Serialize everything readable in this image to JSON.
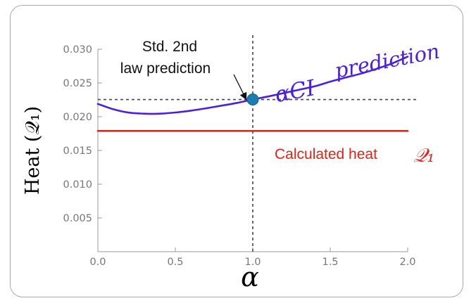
{
  "chart_data": {
    "type": "line",
    "xlabel": "α",
    "ylabel": "Heat (𝒬₁)",
    "xlim": [
      0,
      2
    ],
    "ylim": [
      0,
      0.03
    ],
    "xticks": [
      "0.0",
      "0.5",
      "1.0",
      "1.5",
      "2.0"
    ],
    "yticks": [
      "0.005",
      "0.010",
      "0.015",
      "0.020",
      "0.025",
      "0.030"
    ],
    "grid": false,
    "series": [
      {
        "name": "αCI prediction",
        "color": "#4b1fe0",
        "x": [
          0,
          0.1,
          0.2,
          0.3,
          0.35,
          0.4,
          0.5,
          0.6,
          0.7,
          0.8,
          0.9,
          1.0,
          1.1,
          1.2,
          1.3,
          1.4,
          1.5,
          1.6,
          1.7,
          1.8,
          1.9,
          2.0
        ],
        "y": [
          0.0219,
          0.0211,
          0.0206,
          0.02045,
          0.02043,
          0.02045,
          0.02062,
          0.0209,
          0.02125,
          0.02165,
          0.02205,
          0.02255,
          0.023,
          0.0235,
          0.024,
          0.0245,
          0.0252,
          0.0258,
          0.0264,
          0.0271,
          0.0279,
          0.0289
        ]
      },
      {
        "name": "Calculated heat 𝒬₁",
        "color": "#e32119",
        "x": [
          0,
          2
        ],
        "y": [
          0.0179,
          0.0179
        ]
      }
    ],
    "reference_lines": {
      "vertical_x": 1.0,
      "horizontal_y": 0.02255,
      "color": "#444444",
      "style": "dashed"
    },
    "marker": {
      "x": 1.0,
      "y": 0.02255,
      "color": "#1a7fb0"
    },
    "annotations": {
      "std_line1": "Std. 2nd",
      "std_line2": "law prediction",
      "blue_label_symbol": "αCI",
      "blue_label_text": "prediction",
      "red_label_text": "Calculated heat",
      "red_label_symbol": "𝒬₁"
    }
  }
}
